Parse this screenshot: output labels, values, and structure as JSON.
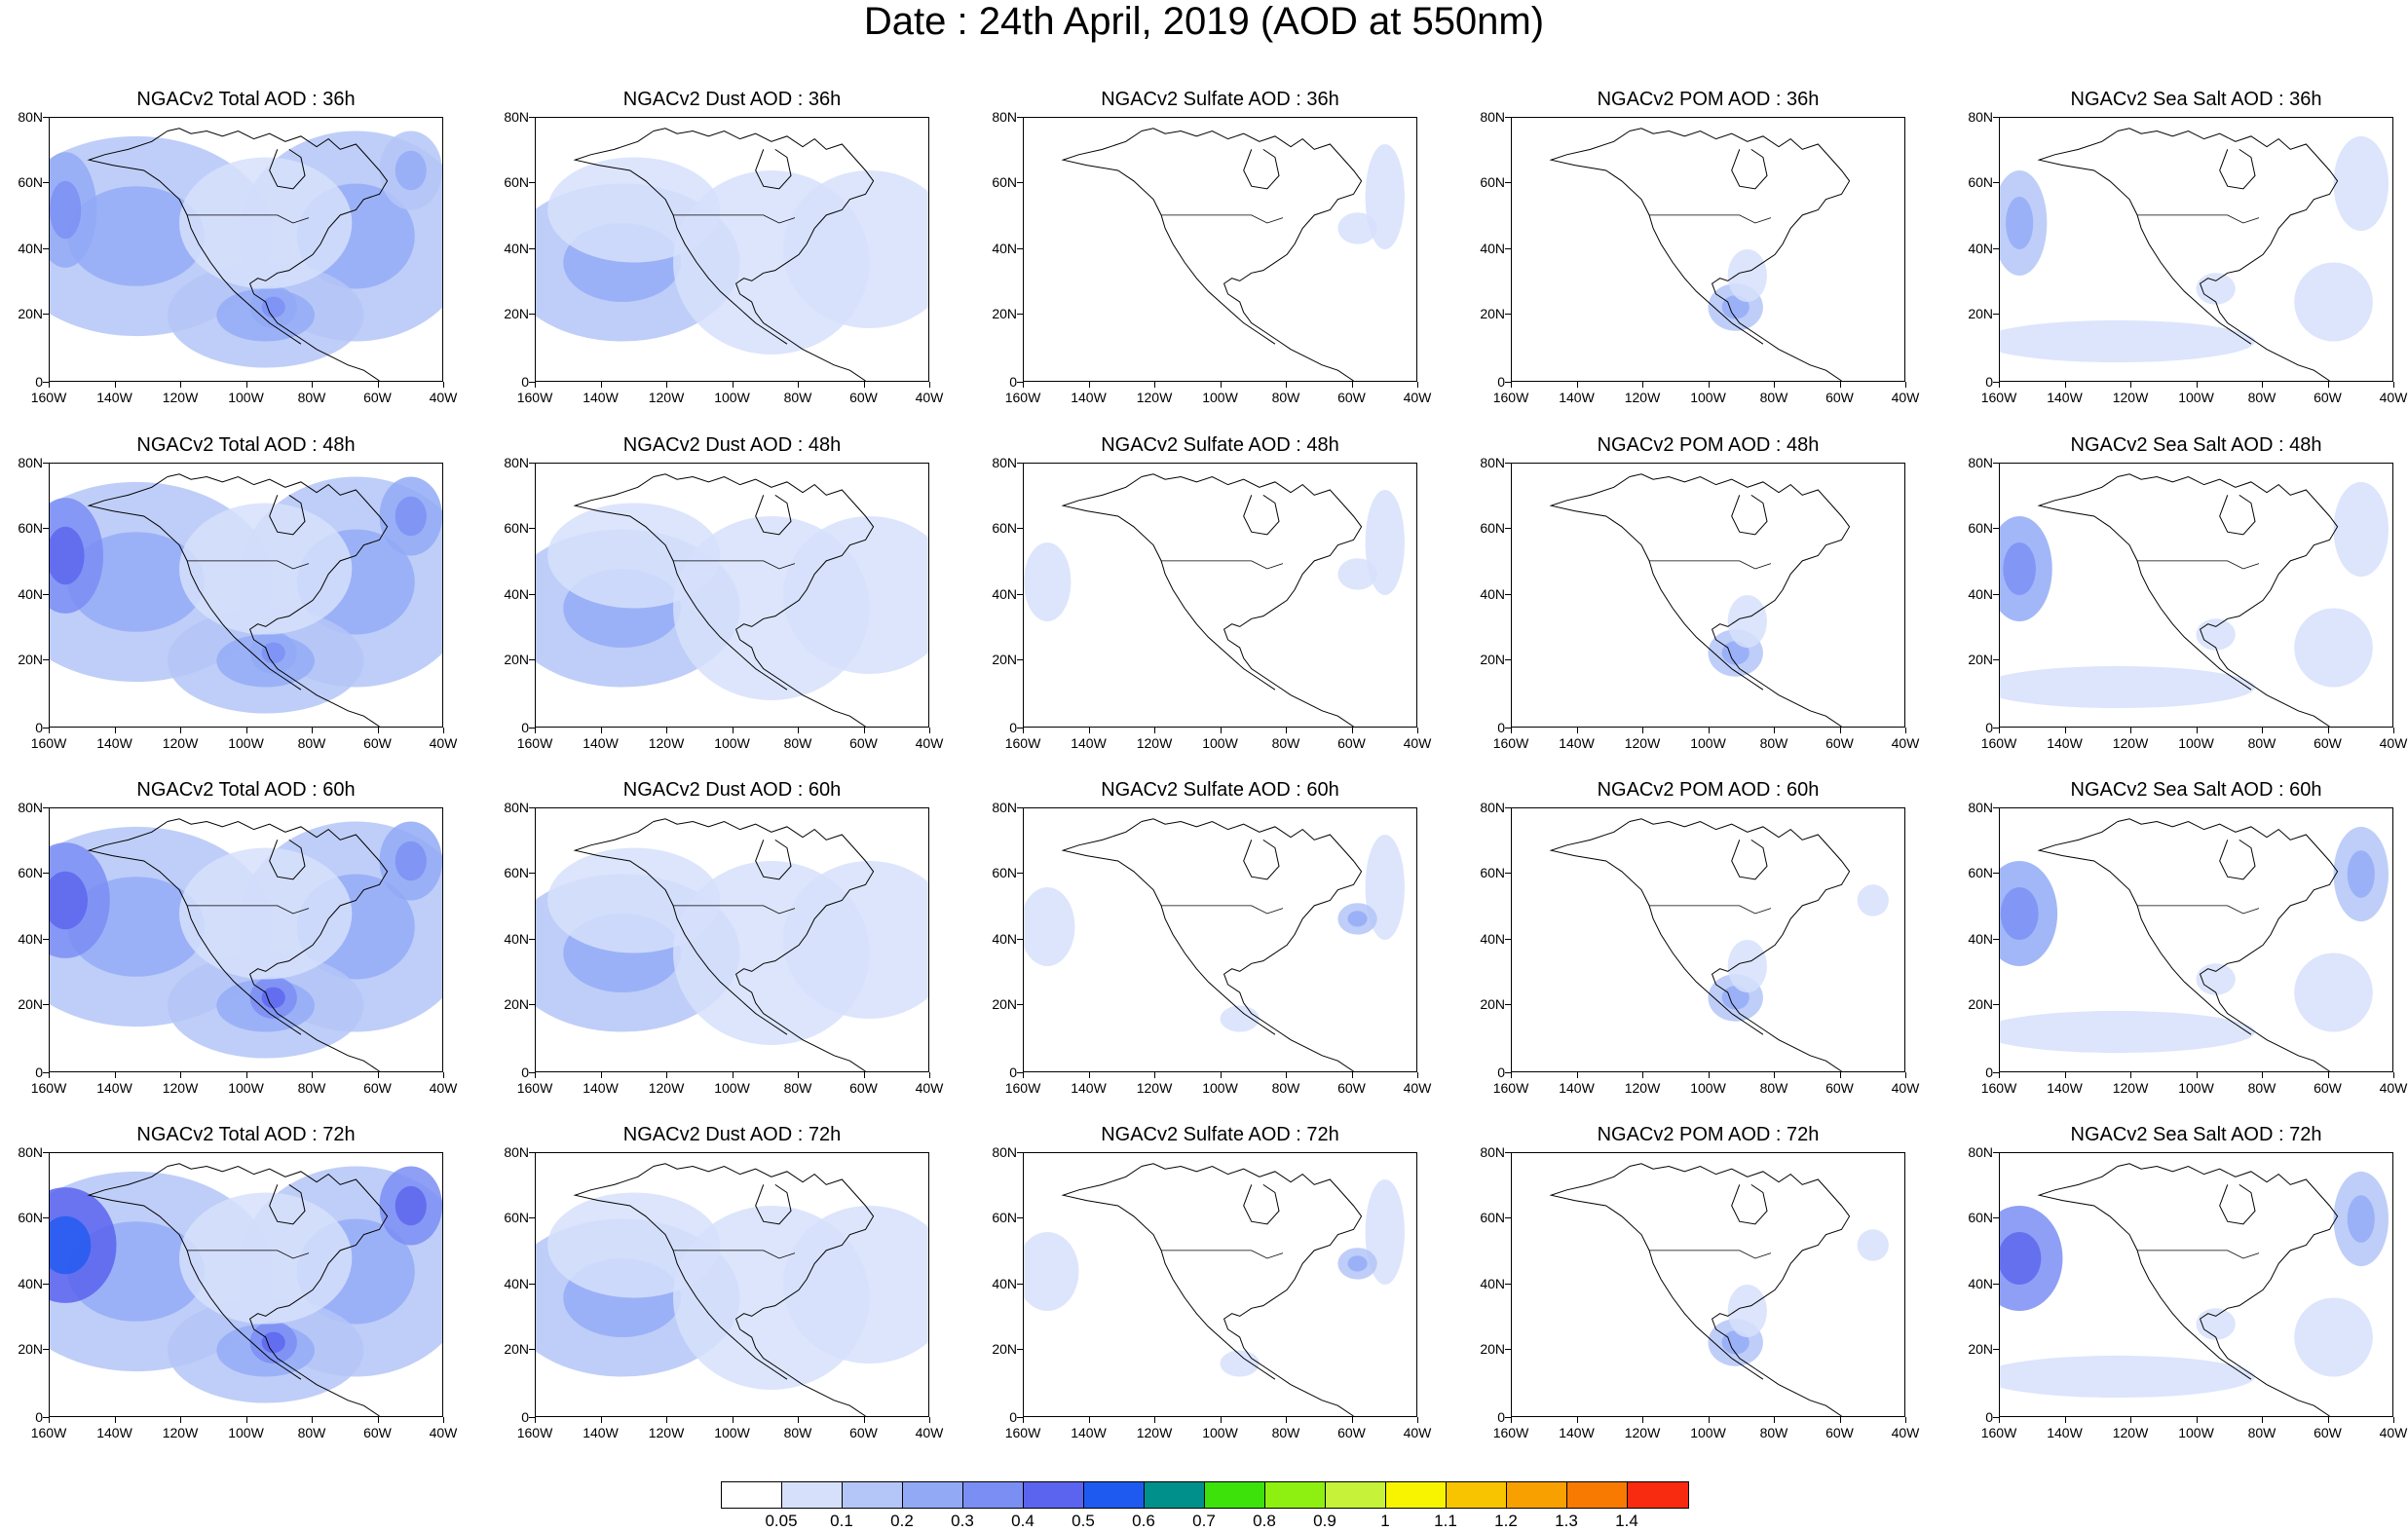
{
  "title": "Date : 24th April, 2019 (AOD at 550nm)",
  "lat_labels": [
    "80N",
    "60N",
    "40N",
    "20N",
    "0"
  ],
  "lon_labels": [
    "160W",
    "140W",
    "120W",
    "100W",
    "80W",
    "60W",
    "40W"
  ],
  "panels": [
    [
      {
        "title": "NGACv2 Total AOD : 36h",
        "species": "total",
        "hour": 36
      },
      {
        "title": "NGACv2 Dust AOD : 36h",
        "species": "dust",
        "hour": 36
      },
      {
        "title": "NGACv2 Sulfate AOD : 36h",
        "species": "sulfate",
        "hour": 36
      },
      {
        "title": "NGACv2 POM AOD : 36h",
        "species": "pom",
        "hour": 36
      },
      {
        "title": "NGACv2 Sea Salt AOD : 36h",
        "species": "seasalt",
        "hour": 36
      }
    ],
    [
      {
        "title": "NGACv2 Total AOD : 48h",
        "species": "total",
        "hour": 48
      },
      {
        "title": "NGACv2 Dust AOD : 48h",
        "species": "dust",
        "hour": 48
      },
      {
        "title": "NGACv2 Sulfate AOD : 48h",
        "species": "sulfate",
        "hour": 48
      },
      {
        "title": "NGACv2 POM AOD : 48h",
        "species": "pom",
        "hour": 48
      },
      {
        "title": "NGACv2 Sea Salt AOD : 48h",
        "species": "seasalt",
        "hour": 48
      }
    ],
    [
      {
        "title": "NGACv2 Total AOD : 60h",
        "species": "total",
        "hour": 60
      },
      {
        "title": "NGACv2 Dust AOD : 60h",
        "species": "dust",
        "hour": 60
      },
      {
        "title": "NGACv2 Sulfate AOD : 60h",
        "species": "sulfate",
        "hour": 60
      },
      {
        "title": "NGACv2 POM AOD : 60h",
        "species": "pom",
        "hour": 60
      },
      {
        "title": "NGACv2 Sea Salt AOD : 60h",
        "species": "seasalt",
        "hour": 60
      }
    ],
    [
      {
        "title": "NGACv2 Total AOD : 72h",
        "species": "total",
        "hour": 72
      },
      {
        "title": "NGACv2 Dust AOD : 72h",
        "species": "dust",
        "hour": 72
      },
      {
        "title": "NGACv2 Sulfate AOD : 72h",
        "species": "sulfate",
        "hour": 72
      },
      {
        "title": "NGACv2 POM AOD : 72h",
        "species": "pom",
        "hour": 72
      },
      {
        "title": "NGACv2 Sea Salt  AOD : 72h",
        "species": "seasalt",
        "hour": 72
      }
    ]
  ],
  "colorbar": {
    "labels": [
      "0.05",
      "0.1",
      "0.2",
      "0.3",
      "0.4",
      "0.5",
      "0.6",
      "0.7",
      "0.8",
      "0.9",
      "1",
      "1.1",
      "1.2",
      "1.3",
      "1.4"
    ],
    "colors": [
      "#ffffff",
      "#d6e0fb",
      "#b4c6f7",
      "#92aaf6",
      "#7b8ef4",
      "#5a64ee",
      "#1f5af0",
      "#00908c",
      "#3ce20a",
      "#8ef010",
      "#c6f23a",
      "#f8f400",
      "#f8c400",
      "#f8a000",
      "#f87a00",
      "#f82a10"
    ]
  }
}
